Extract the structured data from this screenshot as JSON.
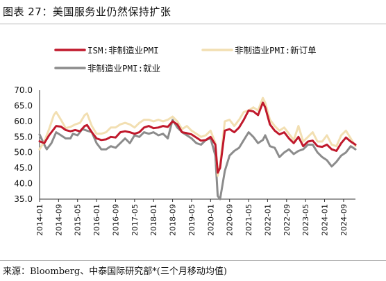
{
  "header": {
    "title": "图表 27：美国服务业仍然保持扩张"
  },
  "footer": {
    "source": "来源：Bloomberg、中泰国际研究部*(三个月移动均值)"
  },
  "chart_data": {
    "type": "line",
    "ylim": [
      35.0,
      70.0
    ],
    "y_ticks": [
      "70.0",
      "65.0",
      "60.0",
      "55.0",
      "50.0",
      "45.0",
      "40.0",
      "35.0"
    ],
    "x_tick_labels": [
      "2014-01",
      "2014-09",
      "2015-05",
      "2016-01",
      "2016-09",
      "2017-05",
      "2018-01",
      "2018-09",
      "2019-05",
      "2020-01",
      "2020-09",
      "2021-05",
      "2022-01",
      "2022-09",
      "2023-05",
      "2024-01",
      "2024-09"
    ],
    "x_range": [
      "2014-01",
      "2025-02"
    ],
    "legend_position": "top",
    "series": [
      {
        "name": "ISM:非制造业PMI",
        "color": "#c0192c",
        "points": [
          [
            "2014-01",
            53.6
          ],
          [
            "2014-03",
            53.0
          ],
          [
            "2014-05",
            55.5
          ],
          [
            "2014-07",
            57.5
          ],
          [
            "2014-08",
            58.5
          ],
          [
            "2014-10",
            58.3
          ],
          [
            "2014-12",
            57.2
          ],
          [
            "2015-02",
            56.8
          ],
          [
            "2015-04",
            57.2
          ],
          [
            "2015-06",
            56.8
          ],
          [
            "2015-08",
            58.5
          ],
          [
            "2015-09",
            58.8
          ],
          [
            "2015-11",
            56.5
          ],
          [
            "2016-01",
            54.5
          ],
          [
            "2016-03",
            54.0
          ],
          [
            "2016-05",
            54.2
          ],
          [
            "2016-07",
            55.0
          ],
          [
            "2016-09",
            54.8
          ],
          [
            "2016-11",
            56.5
          ],
          [
            "2017-01",
            56.8
          ],
          [
            "2017-03",
            56.5
          ],
          [
            "2017-05",
            56.0
          ],
          [
            "2017-07",
            56.5
          ],
          [
            "2017-09",
            58.0
          ],
          [
            "2017-11",
            58.5
          ],
          [
            "2018-01",
            57.8
          ],
          [
            "2018-03",
            58.0
          ],
          [
            "2018-05",
            58.5
          ],
          [
            "2018-07",
            58.2
          ],
          [
            "2018-09",
            60.0
          ],
          [
            "2018-11",
            59.0
          ],
          [
            "2019-01",
            56.5
          ],
          [
            "2019-03",
            56.2
          ],
          [
            "2019-05",
            55.8
          ],
          [
            "2019-07",
            54.8
          ],
          [
            "2019-09",
            53.8
          ],
          [
            "2019-11",
            54.0
          ],
          [
            "2020-01",
            55.0
          ],
          [
            "2020-03",
            52.5
          ],
          [
            "2020-04",
            43.5
          ],
          [
            "2020-05",
            45.0
          ],
          [
            "2020-07",
            57.0
          ],
          [
            "2020-09",
            57.5
          ],
          [
            "2020-11",
            56.5
          ],
          [
            "2021-01",
            58.0
          ],
          [
            "2021-03",
            60.5
          ],
          [
            "2021-05",
            63.5
          ],
          [
            "2021-07",
            63.2
          ],
          [
            "2021-09",
            62.0
          ],
          [
            "2021-11",
            66.0
          ],
          [
            "2021-12",
            64.5
          ],
          [
            "2022-02",
            59.0
          ],
          [
            "2022-04",
            57.0
          ],
          [
            "2022-06",
            55.8
          ],
          [
            "2022-08",
            56.5
          ],
          [
            "2022-10",
            54.5
          ],
          [
            "2022-12",
            53.0
          ],
          [
            "2023-02",
            55.0
          ],
          [
            "2023-04",
            52.0
          ],
          [
            "2023-06",
            53.5
          ],
          [
            "2023-08",
            53.8
          ],
          [
            "2023-10",
            52.0
          ],
          [
            "2023-12",
            51.8
          ],
          [
            "2024-02",
            52.5
          ],
          [
            "2024-04",
            51.0
          ],
          [
            "2024-06",
            50.5
          ],
          [
            "2024-08",
            53.0
          ],
          [
            "2024-10",
            54.8
          ],
          [
            "2024-12",
            53.5
          ],
          [
            "2025-02",
            52.5
          ]
        ]
      },
      {
        "name": "非制造业PMI:新订单",
        "color": "#f2dfb2",
        "points": [
          [
            "2014-01",
            51.0
          ],
          [
            "2014-03",
            53.5
          ],
          [
            "2014-05",
            57.5
          ],
          [
            "2014-07",
            62.0
          ],
          [
            "2014-08",
            63.0
          ],
          [
            "2014-10",
            60.5
          ],
          [
            "2014-12",
            57.8
          ],
          [
            "2015-02",
            58.2
          ],
          [
            "2015-04",
            59.0
          ],
          [
            "2015-06",
            59.5
          ],
          [
            "2015-08",
            62.0
          ],
          [
            "2015-09",
            62.5
          ],
          [
            "2015-11",
            58.5
          ],
          [
            "2016-01",
            56.0
          ],
          [
            "2016-03",
            56.0
          ],
          [
            "2016-05",
            56.5
          ],
          [
            "2016-07",
            58.0
          ],
          [
            "2016-09",
            58.0
          ],
          [
            "2016-11",
            59.0
          ],
          [
            "2017-01",
            59.5
          ],
          [
            "2017-03",
            59.0
          ],
          [
            "2017-05",
            58.0
          ],
          [
            "2017-07",
            59.5
          ],
          [
            "2017-09",
            60.5
          ],
          [
            "2017-11",
            60.5
          ],
          [
            "2018-01",
            60.0
          ],
          [
            "2018-03",
            60.5
          ],
          [
            "2018-05",
            60.0
          ],
          [
            "2018-07",
            60.5
          ],
          [
            "2018-09",
            61.5
          ],
          [
            "2018-11",
            60.0
          ],
          [
            "2019-01",
            57.5
          ],
          [
            "2019-03",
            58.5
          ],
          [
            "2019-05",
            57.0
          ],
          [
            "2019-07",
            56.0
          ],
          [
            "2019-09",
            55.0
          ],
          [
            "2019-11",
            55.5
          ],
          [
            "2020-01",
            57.0
          ],
          [
            "2020-03",
            53.0
          ],
          [
            "2020-04",
            42.5
          ],
          [
            "2020-05",
            46.0
          ],
          [
            "2020-07",
            60.0
          ],
          [
            "2020-09",
            60.5
          ],
          [
            "2020-11",
            58.5
          ],
          [
            "2021-01",
            60.5
          ],
          [
            "2021-03",
            63.0
          ],
          [
            "2021-05",
            63.5
          ],
          [
            "2021-07",
            64.5
          ],
          [
            "2021-09",
            63.5
          ],
          [
            "2021-11",
            67.5
          ],
          [
            "2021-12",
            66.0
          ],
          [
            "2022-02",
            60.5
          ],
          [
            "2022-04",
            58.5
          ],
          [
            "2022-06",
            57.0
          ],
          [
            "2022-08",
            58.0
          ],
          [
            "2022-10",
            56.0
          ],
          [
            "2022-12",
            54.0
          ],
          [
            "2023-02",
            58.5
          ],
          [
            "2023-04",
            53.5
          ],
          [
            "2023-06",
            55.0
          ],
          [
            "2023-08",
            56.5
          ],
          [
            "2023-10",
            53.5
          ],
          [
            "2023-12",
            53.5
          ],
          [
            "2024-02",
            55.5
          ],
          [
            "2024-04",
            52.5
          ],
          [
            "2024-06",
            52.0
          ],
          [
            "2024-08",
            55.5
          ],
          [
            "2024-10",
            57.0
          ],
          [
            "2024-12",
            54.5
          ],
          [
            "2025-02",
            52.0
          ]
        ]
      },
      {
        "name": "非制造业PMI:就业",
        "color": "#8c8c8c",
        "points": [
          [
            "2014-01",
            55.8
          ],
          [
            "2014-03",
            52.5
          ],
          [
            "2014-04",
            51.0
          ],
          [
            "2014-06",
            53.0
          ],
          [
            "2014-08",
            56.5
          ],
          [
            "2014-10",
            55.5
          ],
          [
            "2014-12",
            54.5
          ],
          [
            "2015-02",
            54.5
          ],
          [
            "2015-03",
            56.0
          ],
          [
            "2015-05",
            55.5
          ],
          [
            "2015-07",
            57.5
          ],
          [
            "2015-09",
            57.0
          ],
          [
            "2015-11",
            56.5
          ],
          [
            "2016-01",
            53.0
          ],
          [
            "2016-03",
            51.0
          ],
          [
            "2016-05",
            51.0
          ],
          [
            "2016-07",
            52.0
          ],
          [
            "2016-09",
            51.5
          ],
          [
            "2016-11",
            53.0
          ],
          [
            "2017-01",
            54.5
          ],
          [
            "2017-03",
            53.0
          ],
          [
            "2017-05",
            55.5
          ],
          [
            "2017-07",
            55.0
          ],
          [
            "2017-09",
            56.5
          ],
          [
            "2017-11",
            56.0
          ],
          [
            "2018-01",
            56.5
          ],
          [
            "2018-03",
            55.5
          ],
          [
            "2018-05",
            56.0
          ],
          [
            "2018-07",
            54.5
          ],
          [
            "2018-09",
            60.5
          ],
          [
            "2018-11",
            58.0
          ],
          [
            "2019-01",
            56.5
          ],
          [
            "2019-03",
            55.5
          ],
          [
            "2019-05",
            54.5
          ],
          [
            "2019-07",
            53.0
          ],
          [
            "2019-09",
            52.5
          ],
          [
            "2019-11",
            54.0
          ],
          [
            "2020-01",
            54.5
          ],
          [
            "2020-03",
            49.0
          ],
          [
            "2020-04",
            36.0
          ],
          [
            "2020-05",
            35.0
          ],
          [
            "2020-07",
            44.0
          ],
          [
            "2020-09",
            49.0
          ],
          [
            "2020-11",
            50.5
          ],
          [
            "2021-01",
            51.5
          ],
          [
            "2021-03",
            54.0
          ],
          [
            "2021-05",
            56.5
          ],
          [
            "2021-07",
            55.0
          ],
          [
            "2021-09",
            53.0
          ],
          [
            "2021-11",
            54.0
          ],
          [
            "2021-12",
            55.5
          ],
          [
            "2022-02",
            52.0
          ],
          [
            "2022-04",
            51.5
          ],
          [
            "2022-06",
            48.5
          ],
          [
            "2022-08",
            50.0
          ],
          [
            "2022-10",
            51.0
          ],
          [
            "2022-12",
            49.5
          ],
          [
            "2023-02",
            50.5
          ],
          [
            "2023-04",
            51.0
          ],
          [
            "2023-06",
            52.5
          ],
          [
            "2023-08",
            52.5
          ],
          [
            "2023-10",
            50.0
          ],
          [
            "2023-12",
            48.5
          ],
          [
            "2024-02",
            47.5
          ],
          [
            "2024-04",
            45.5
          ],
          [
            "2024-06",
            47.0
          ],
          [
            "2024-08",
            49.0
          ],
          [
            "2024-10",
            50.0
          ],
          [
            "2024-12",
            52.0
          ],
          [
            "2025-02",
            51.0
          ]
        ]
      }
    ]
  }
}
